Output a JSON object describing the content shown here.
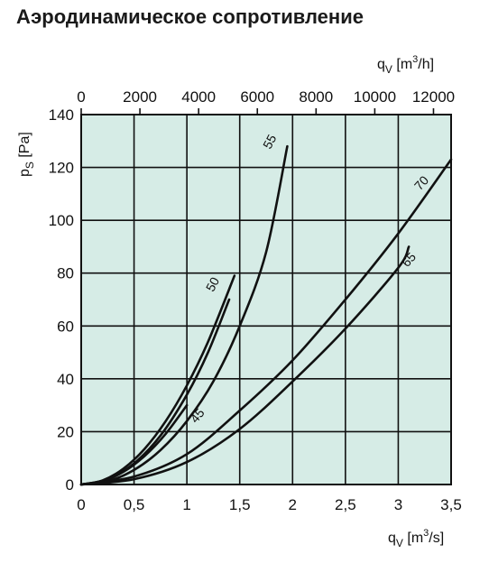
{
  "title": "Аэродинамическое сопротивление",
  "chart_data": {
    "type": "line",
    "title": "Аэродинамическое сопротивление",
    "xlabel": "q_V [m^3/s]",
    "x2label": "q_V [m^3/h]",
    "ylabel": "p_S [Pa]",
    "xlim": [
      0,
      3.5
    ],
    "ylim": [
      0,
      140
    ],
    "x2lim": [
      0,
      12600
    ],
    "x_ticks": [
      "0",
      "0,5",
      "1",
      "1,5",
      "2",
      "2,5",
      "3",
      "3,5"
    ],
    "x_tick_values": [
      0,
      0.5,
      1,
      1.5,
      2,
      2.5,
      3,
      3.5
    ],
    "x2_ticks": [
      "0",
      "2000",
      "4000",
      "6000",
      "8000",
      "10000",
      "12000"
    ],
    "x2_tick_values": [
      0,
      2000,
      4000,
      6000,
      8000,
      10000,
      12000
    ],
    "y_ticks": [
      "0",
      "20",
      "40",
      "60",
      "80",
      "100",
      "120",
      "140"
    ],
    "y_tick_values": [
      0,
      20,
      40,
      60,
      80,
      100,
      120,
      140
    ],
    "grid": true,
    "background": "#d6ece6",
    "line_color": "#111111",
    "series": [
      {
        "name": "45",
        "x": [
          0,
          0.2,
          0.4,
          0.6,
          0.8,
          1.0
        ],
        "y": [
          0,
          1.2,
          4.8,
          10.8,
          19.2,
          30
        ]
      },
      {
        "name": "50",
        "x": [
          0,
          0.2,
          0.4,
          0.6,
          0.8,
          1.0,
          1.2,
          1.45
        ],
        "y": [
          0,
          1.5,
          6,
          13.5,
          24,
          37.5,
          54,
          79
        ]
      },
      {
        "name": "55",
        "x": [
          0,
          0.25,
          0.5,
          0.75,
          1.0,
          1.25,
          1.5,
          1.75,
          1.95
        ],
        "y": [
          0,
          1.2,
          5.5,
          13,
          24,
          39,
          60,
          88,
          128
        ]
      },
      {
        "name": "",
        "x": [
          0,
          0.25,
          0.5,
          0.75,
          1.0,
          1.2,
          1.4
        ],
        "y": [
          0,
          2,
          8,
          18.5,
          34,
          50,
          70
        ]
      },
      {
        "name": "70",
        "x": [
          0,
          0.5,
          1,
          1.5,
          2,
          2.5,
          3,
          3.5
        ],
        "y": [
          0,
          3,
          11.5,
          28,
          47,
          70,
          95,
          123
        ]
      },
      {
        "name": "65",
        "x": [
          0,
          0.5,
          1,
          1.5,
          2,
          2.5,
          3,
          3.1
        ],
        "y": [
          0,
          2,
          8.5,
          21,
          39,
          59,
          82,
          90
        ]
      }
    ],
    "curve_labels": [
      {
        "text": "55",
        "x": 1.82,
        "y": 129,
        "angle": -62
      },
      {
        "text": "50",
        "x": 1.28,
        "y": 75,
        "angle": -62
      },
      {
        "text": "45",
        "x": 1.13,
        "y": 25,
        "angle": -50
      },
      {
        "text": "70",
        "x": 3.25,
        "y": 113,
        "angle": -48
      },
      {
        "text": "65",
        "x": 3.13,
        "y": 84,
        "angle": -48
      }
    ]
  }
}
